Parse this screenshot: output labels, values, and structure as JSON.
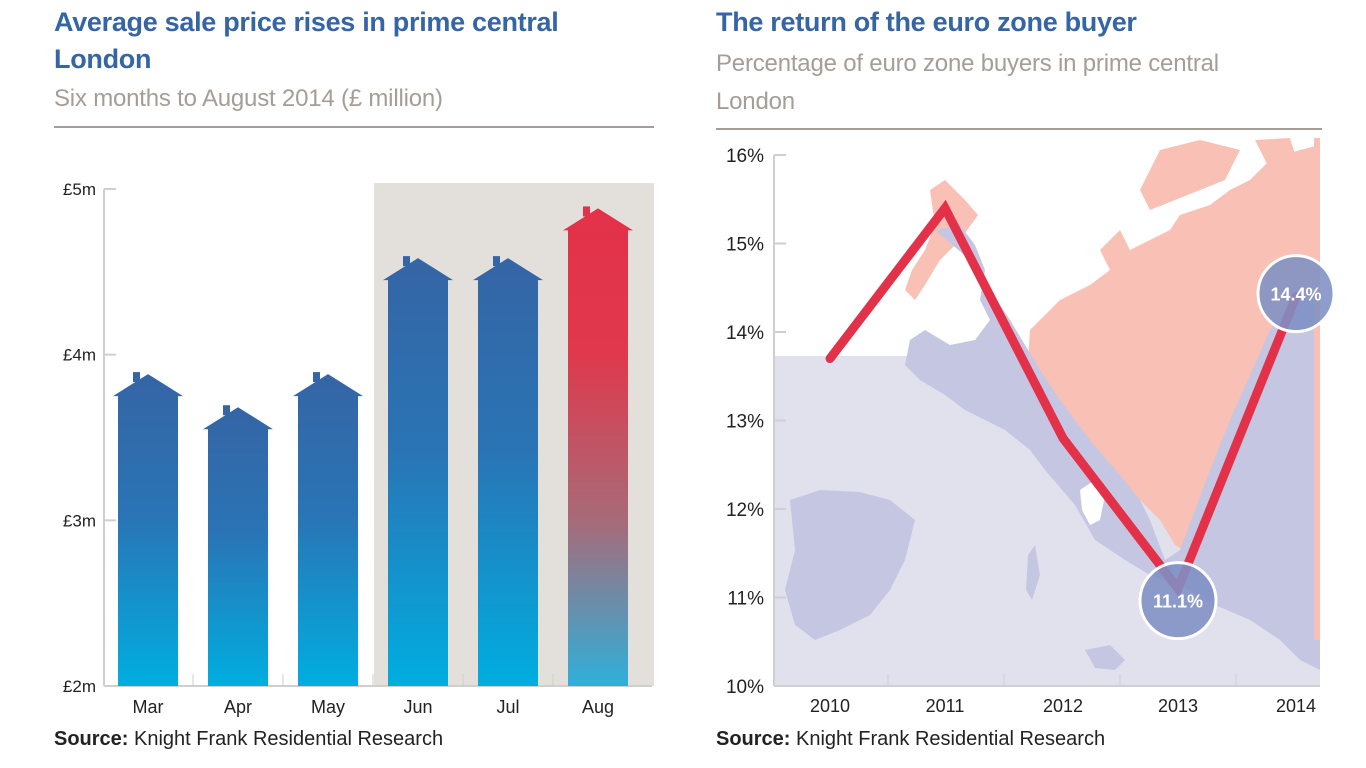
{
  "chart_data": [
    {
      "type": "bar",
      "title": "Average sale price rises in prime central London",
      "subtitle": "Six months to August 2014 (£ million)",
      "categories": [
        "Mar",
        "Apr",
        "May",
        "Jun",
        "Jul",
        "Aug"
      ],
      "values": [
        3.75,
        3.55,
        3.75,
        4.45,
        4.45,
        4.75
      ],
      "ylim": [
        2,
        5
      ],
      "yticks": [
        5,
        4,
        3,
        2
      ],
      "ytick_labels": [
        "£5m",
        "£4m",
        "£3m",
        "£2m"
      ],
      "xlabel": "",
      "ylabel": "",
      "highlighted_categories": [
        "Jun",
        "Jul",
        "Aug"
      ],
      "source_label": "Source:",
      "source_text": " Knight Frank Residential Research",
      "colors": {
        "bar": "#3565a5",
        "bar_bottom": "#00aee0",
        "highlight": "#e3314a",
        "shade": "#e3dfdb",
        "axis": "#cfcfcf"
      }
    },
    {
      "type": "line",
      "title": "The return of the euro zone buyer",
      "subtitle": "Percentage of euro zone buyers in prime central London",
      "x": [
        "2010",
        "2011",
        "2012",
        "2013",
        "2014"
      ],
      "values": [
        13.7,
        15.4,
        12.8,
        11.1,
        14.4
      ],
      "ylim": [
        10,
        16
      ],
      "yticks": [
        16,
        15,
        14,
        13,
        12,
        11,
        10
      ],
      "ytick_labels": [
        "16%",
        "15%",
        "14%",
        "13%",
        "12%",
        "11%",
        "10%"
      ],
      "annotations": [
        {
          "x": "2013",
          "label": "11.1%"
        },
        {
          "x": "2014",
          "label": "14.4%"
        }
      ],
      "source_label": "Source:",
      "source_text": " Knight Frank Residential Research",
      "colors": {
        "line": "#e3314a",
        "map_sea": "#e1e1ee",
        "map_land": "#c5c7e2",
        "map_north": "#f9c0b5",
        "bubble": "#7e90c4"
      }
    }
  ]
}
